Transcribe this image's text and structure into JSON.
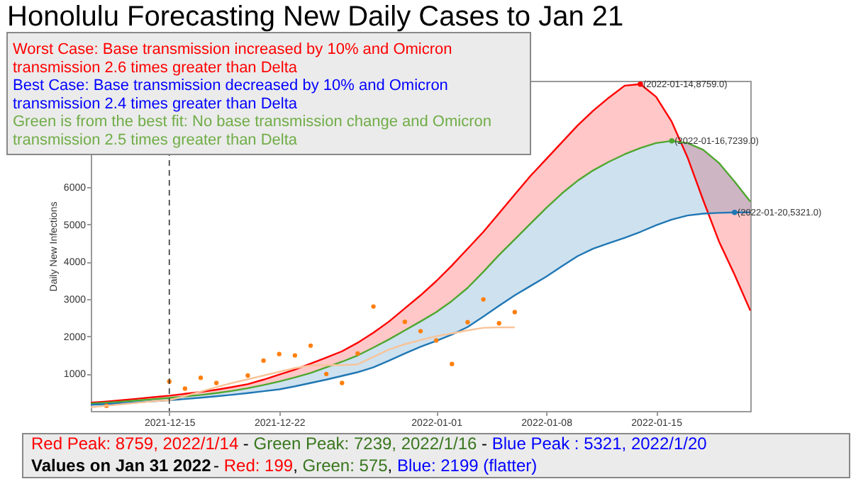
{
  "chart_data": {
    "type": "line",
    "title": "Honolulu Forecasting New Daily Cases to Jan 21",
    "ylabel": "Daily New Infections",
    "x": [
      "2021-12-10",
      "2021-12-11",
      "2021-12-12",
      "2021-12-13",
      "2021-12-14",
      "2021-12-15",
      "2021-12-16",
      "2021-12-17",
      "2021-12-18",
      "2021-12-19",
      "2021-12-20",
      "2021-12-21",
      "2021-12-22",
      "2021-12-23",
      "2021-12-24",
      "2021-12-25",
      "2021-12-26",
      "2021-12-27",
      "2021-12-28",
      "2021-12-29",
      "2021-12-30",
      "2021-12-31",
      "2022-01-01",
      "2022-01-02",
      "2022-01-03",
      "2022-01-04",
      "2022-01-05",
      "2022-01-06",
      "2022-01-07",
      "2022-01-08",
      "2022-01-09",
      "2022-01-10",
      "2022-01-11",
      "2022-01-12",
      "2022-01-13",
      "2022-01-14",
      "2022-01-15",
      "2022-01-16",
      "2022-01-17",
      "2022-01-18",
      "2022-01-19",
      "2022-01-20",
      "2022-01-21"
    ],
    "series": [
      {
        "color": "#ff0000",
        "values": [
          225,
          255,
          290,
          330,
          370,
          410,
          460,
          510,
          570,
          640,
          720,
          840,
          975,
          1110,
          1270,
          1430,
          1600,
          1830,
          2100,
          2400,
          2750,
          3100,
          3480,
          3900,
          4350,
          4800,
          5300,
          5800,
          6300,
          6750,
          7200,
          7650,
          8050,
          8400,
          8720,
          8759,
          8420,
          7750,
          6800,
          5650,
          4550,
          3650,
          2690
        ],
        "lower": [
          200,
          225,
          255,
          285,
          315,
          350,
          390,
          430,
          480,
          540,
          610,
          695,
          790,
          900,
          1020,
          1170,
          1320,
          1490,
          1700,
          1920,
          2160,
          2400,
          2650,
          2950,
          3300,
          3730,
          4180,
          4600,
          5020,
          5440,
          5830,
          6170,
          6450,
          6680,
          6880,
          7050,
          7180,
          7239,
          7180,
          7000,
          6650,
          6150,
          5610
        ],
        "upper": [
          225,
          255,
          290,
          330,
          370,
          410,
          460,
          510,
          570,
          640,
          720,
          840,
          975,
          1110,
          1270,
          1430,
          1600,
          1830,
          2100,
          2400,
          2750,
          3100,
          3480,
          3900,
          4350,
          4800,
          5300,
          5800,
          6300,
          6750,
          7200,
          7650,
          8050,
          8400,
          8720,
          8759,
          8420,
          7750,
          6800,
          5650,
          4550,
          3650,
          2690
        ]
      },
      {
        "color": "#4ea72e",
        "values": [
          200,
          225,
          255,
          285,
          315,
          350,
          390,
          430,
          480,
          540,
          610,
          695,
          790,
          900,
          1020,
          1170,
          1320,
          1490,
          1700,
          1920,
          2160,
          2400,
          2650,
          2950,
          3300,
          3730,
          4180,
          4600,
          5020,
          5440,
          5830,
          6170,
          6450,
          6680,
          6880,
          7050,
          7180,
          7239,
          7180,
          7000,
          6650,
          6150,
          5610
        ]
      },
      {
        "color": "#1f77b4",
        "values": [
          165,
          185,
          210,
          235,
          260,
          290,
          320,
          355,
          395,
          435,
          480,
          530,
          580,
          660,
          750,
          840,
          940,
          1040,
          1170,
          1350,
          1540,
          1720,
          1880,
          2050,
          2250,
          2530,
          2820,
          3100,
          3350,
          3600,
          3880,
          4150,
          4350,
          4500,
          4640,
          4800,
          4980,
          5130,
          5240,
          5290,
          5310,
          5321,
          5321
        ],
        "lower": [
          165,
          185,
          210,
          235,
          260,
          290,
          320,
          355,
          395,
          435,
          480,
          530,
          580,
          660,
          750,
          840,
          940,
          1040,
          1170,
          1350,
          1540,
          1720,
          1880,
          2050,
          2250,
          2530,
          2820,
          3100,
          3350,
          3600,
          3880,
          4150,
          4350,
          4500,
          4640,
          4800,
          4980,
          5130,
          5240,
          5290,
          5310,
          5321,
          5321
        ],
        "upper": [
          200,
          225,
          255,
          285,
          315,
          350,
          390,
          430,
          480,
          540,
          610,
          695,
          790,
          900,
          1020,
          1170,
          1320,
          1490,
          1700,
          1920,
          2160,
          2400,
          2650,
          2950,
          3300,
          3730,
          4180,
          4600,
          5020,
          5440,
          5830,
          6170,
          6450,
          6680,
          6880,
          7050,
          7180,
          7239,
          7180,
          7000,
          6650,
          6150,
          5610
        ]
      },
      {
        "type": "scatter",
        "color": "#ff7f0e",
        "marker": "circle",
        "x": [
          "2021-12-11",
          "2021-12-15",
          "2021-12-16",
          "2021-12-17",
          "2021-12-18",
          "2021-12-20",
          "2021-12-21",
          "2021-12-22",
          "2021-12-23",
          "2021-12-24",
          "2021-12-25",
          "2021-12-26",
          "2021-12-27",
          "2021-12-28",
          "2021-12-30",
          "2021-12-31",
          "2022-01-01",
          "2022-01-02",
          "2022-01-03",
          "2022-01-04",
          "2022-01-05",
          "2022-01-06"
        ],
        "values": [
          140,
          790,
          600,
          890,
          750,
          950,
          1350,
          1525,
          1490,
          1750,
          990,
          750,
          1540,
          2800,
          2390,
          2140,
          1890,
          1260,
          2380,
          2990,
          2350,
          2650
        ]
      },
      {
        "color": "#f7c49a",
        "x": [
          "2021-12-10",
          "2021-12-11",
          "2021-12-12",
          "2021-12-13",
          "2021-12-14",
          "2021-12-15",
          "2021-12-16",
          "2021-12-17",
          "2021-12-18",
          "2021-12-19",
          "2021-12-20",
          "2021-12-21",
          "2021-12-22",
          "2021-12-23",
          "2021-12-24",
          "2021-12-25",
          "2021-12-26",
          "2021-12-27",
          "2021-12-28",
          "2021-12-29",
          "2021-12-30",
          "2021-12-31",
          "2022-01-01",
          "2022-01-02",
          "2022-01-03",
          "2022-01-04",
          "2022-01-05",
          "2022-01-06"
        ],
        "values": [
          100,
          140,
          180,
          220,
          260,
          290,
          400,
          520,
          640,
          750,
          850,
          950,
          1050,
          1150,
          1220,
          1230,
          1230,
          1250,
          1450,
          1650,
          1790,
          1900,
          2000,
          2080,
          2160,
          2230,
          2240,
          2240
        ]
      }
    ],
    "xlim": [
      "2021-12-10",
      "2022-01-21"
    ],
    "xticks": [
      "2021-12-15",
      "2021-12-22",
      "2022-01-01",
      "2022-01-08",
      "2022-01-15"
    ],
    "ylim": [
      0,
      8850
    ],
    "yticks": [
      1000,
      2000,
      3000,
      4000,
      5000,
      6000
    ],
    "ref_lines": [
      {
        "axis": "x",
        "value": "2021-12-15",
        "color": "#333333",
        "line_style": "dashed"
      }
    ],
    "annotations": [
      "Worst Case: Base transmission increased by 10% and Omicron",
      "transmission 2.6 times greater than Delta",
      "Best Case: Base transmission decreased by 10% and Omicron",
      "transmission 2.4 times greater than Delta",
      "Green is from the best fit: No base transmission change and Omicron",
      "transmission 2.5 times greater than Delta",
      "Red Peak: 8759, 2022/1/14",
      "-",
      "Green Peak: 7239, 2022/1/16",
      "-",
      "Blue Peak : 5321, 2022/1/20",
      "Values on Jan 31 2022",
      "-",
      "Red: 199",
      ",",
      "Green: 575",
      ",",
      "Blue: 2199 (flatter)",
      {
        "text": "(2022-01-14,8759.0)",
        "x": "2022-01-14",
        "y": 8759
      },
      {
        "text": "(2022-01-16,7239.0)",
        "x": "2022-01-16",
        "y": 7239
      },
      {
        "text": "(2022-01-20,5321.0)",
        "x": "2022-01-20",
        "y": 5321
      }
    ]
  }
}
